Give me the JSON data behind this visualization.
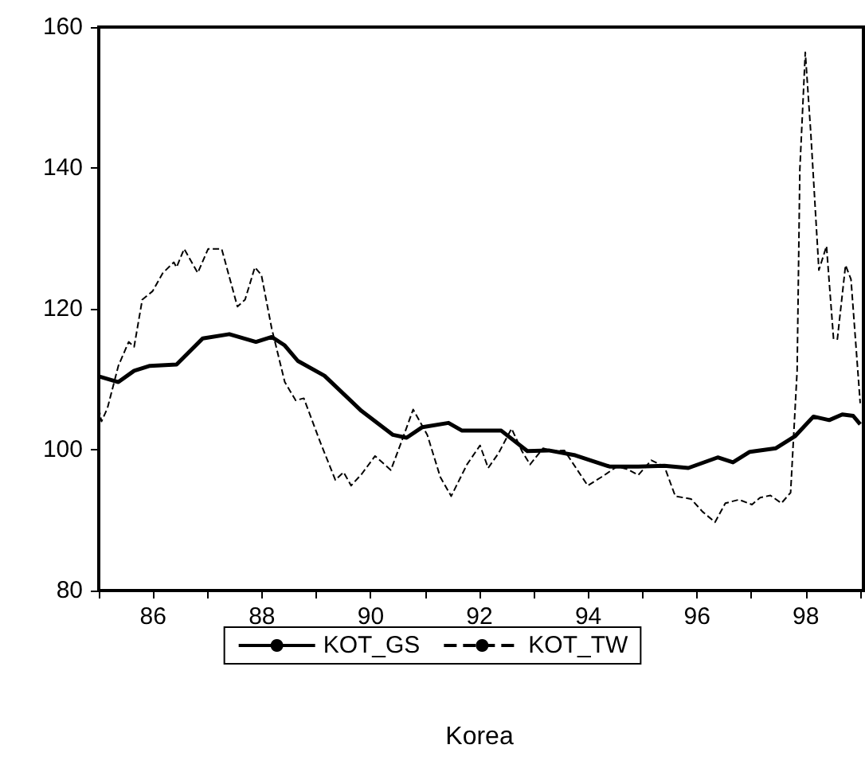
{
  "chart_data": {
    "type": "line",
    "xlabel": "Korea",
    "xlim": [
      85,
      99
    ],
    "ylim": [
      80,
      160
    ],
    "xticks": [
      {
        "value": 85,
        "label": null
      },
      86,
      {
        "value": 87,
        "label": null
      },
      88,
      {
        "value": 89,
        "label": null
      },
      90,
      {
        "value": 91,
        "label": null
      },
      92,
      {
        "value": 93,
        "label": null
      },
      94,
      {
        "value": 95,
        "label": null
      },
      96,
      {
        "value": 97,
        "label": null
      },
      98,
      {
        "value": 99,
        "label": null
      }
    ],
    "yticks": [
      80,
      100,
      120,
      140,
      160
    ],
    "grid": false,
    "legend": "bottom",
    "marker": "none",
    "series": [
      {
        "name": "KOT_GS",
        "color": "#000000",
        "line_style": "solid",
        "x": [
          85.0,
          85.36,
          85.65,
          85.94,
          86.43,
          86.91,
          87.4,
          87.89,
          88.18,
          88.42,
          88.66,
          89.15,
          89.83,
          90.41,
          90.66,
          90.95,
          91.43,
          91.68,
          92.06,
          92.4,
          92.88,
          93.27,
          93.76,
          94.39,
          94.92,
          95.4,
          95.84,
          96.38,
          96.66,
          96.97,
          97.45,
          97.8,
          98.14,
          98.43,
          98.67,
          98.87,
          99.0
        ],
        "values": [
          110.4,
          109.6,
          111.2,
          111.9,
          112.1,
          115.8,
          116.4,
          115.3,
          116.0,
          114.8,
          112.6,
          110.5,
          105.5,
          102.1,
          101.7,
          103.2,
          103.8,
          102.7,
          102.7,
          102.7,
          99.8,
          99.9,
          99.2,
          97.6,
          97.6,
          97.7,
          97.4,
          98.9,
          98.2,
          99.7,
          100.2,
          101.9,
          104.7,
          104.2,
          105.0,
          104.8,
          103.6
        ]
      },
      {
        "name": "KOT_TW",
        "color": "#000000",
        "line_style": "dashed",
        "x": [
          85.0,
          85.05,
          85.16,
          85.36,
          85.55,
          85.65,
          85.8,
          85.99,
          86.18,
          86.38,
          86.43,
          86.57,
          86.82,
          87.01,
          87.26,
          87.55,
          87.69,
          87.87,
          87.99,
          88.18,
          88.42,
          88.62,
          88.77,
          89.06,
          89.35,
          89.5,
          89.64,
          89.83,
          90.08,
          90.37,
          90.56,
          90.78,
          91.04,
          91.28,
          91.48,
          91.77,
          92.01,
          92.16,
          92.35,
          92.59,
          92.78,
          92.93,
          93.17,
          93.36,
          93.56,
          93.99,
          94.24,
          94.53,
          94.73,
          94.92,
          95.16,
          95.4,
          95.6,
          95.89,
          96.1,
          96.33,
          96.52,
          96.77,
          97.01,
          97.16,
          97.35,
          97.55,
          97.72,
          97.84,
          97.89,
          97.99,
          98.09,
          98.24,
          98.38,
          98.51,
          98.58,
          98.73,
          98.83,
          99.0
        ],
        "values": [
          105.9,
          104.0,
          105.9,
          111.9,
          115.3,
          114.6,
          121.3,
          122.5,
          125.1,
          126.6,
          125.9,
          128.5,
          125.1,
          128.5,
          128.5,
          120.3,
          121.3,
          125.9,
          124.8,
          117.2,
          109.6,
          107.0,
          107.3,
          101.3,
          95.7,
          96.8,
          94.9,
          96.5,
          99.1,
          97.1,
          101.0,
          105.7,
          102.1,
          96.1,
          93.4,
          97.9,
          100.6,
          97.4,
          99.5,
          103.0,
          99.8,
          97.9,
          100.2,
          99.8,
          99.9,
          94.9,
          96.1,
          97.6,
          97.2,
          96.4,
          98.5,
          97.6,
          93.4,
          93.0,
          91.2,
          89.7,
          92.4,
          92.9,
          92.2,
          93.2,
          93.5,
          92.4,
          93.9,
          111.2,
          139.8,
          156.4,
          145.1,
          125.5,
          128.9,
          115.7,
          115.7,
          126.2,
          124.2,
          106.6
        ]
      }
    ]
  }
}
